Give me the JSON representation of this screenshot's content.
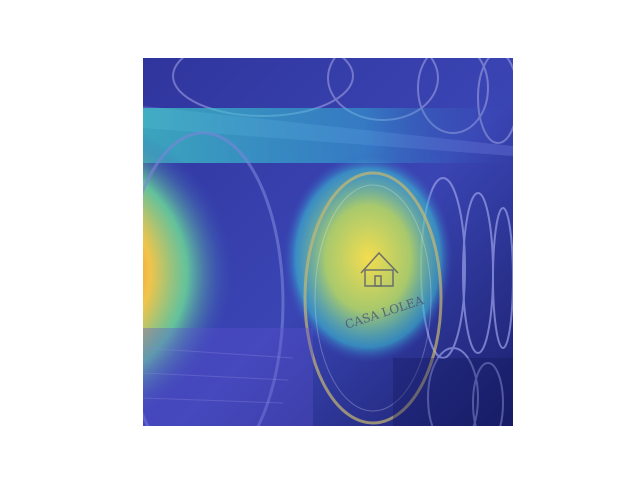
{
  "image": {
    "subject": "wine-barrels-with-attention-heatmap",
    "barrel_stamp_text": "CASA LOLEA",
    "colors": {
      "background": "#ffffff",
      "heat_low": "#2b2f9c",
      "heat_mid": "#31c7d6",
      "heat_high_yellow": "#f2d64d",
      "heat_peak": "#e8432d"
    }
  }
}
